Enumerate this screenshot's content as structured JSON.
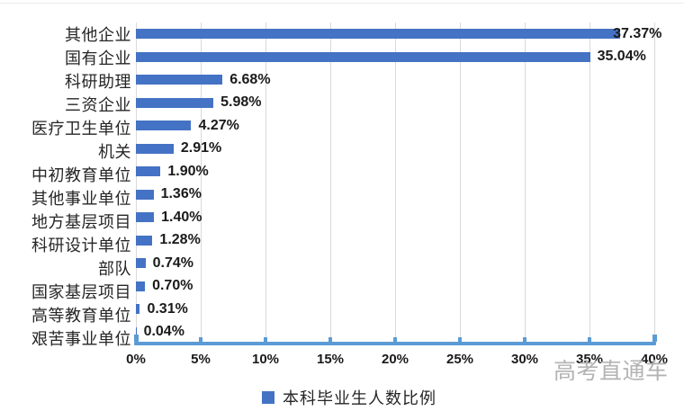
{
  "chart_data": {
    "type": "bar",
    "orientation": "horizontal",
    "title": "",
    "categories": [
      "其他企业",
      "国有企业",
      "科研助理",
      "三资企业",
      "医疗卫生单位",
      "机关",
      "中初教育单位",
      "其他事业单位",
      "地方基层项目",
      "科研设计单位",
      "部队",
      "国家基层项目",
      "高等教育单位",
      "艰苦事业单位"
    ],
    "values": [
      37.37,
      35.04,
      6.68,
      5.98,
      4.27,
      2.91,
      1.9,
      1.36,
      1.4,
      1.28,
      0.74,
      0.7,
      0.31,
      0.04
    ],
    "data_labels": [
      "37.37%",
      "35.04%",
      "6.68%",
      "5.98%",
      "4.27%",
      "2.91%",
      "1.90%",
      "1.36%",
      "1.40%",
      "1.28%",
      "0.74%",
      "0.70%",
      "0.31%",
      "0.04%"
    ],
    "x_axis": {
      "min": 0,
      "max": 40,
      "step": 5,
      "tick_labels": [
        "0%",
        "5%",
        "10%",
        "15%",
        "20%",
        "25%",
        "30%",
        "35%",
        "40%"
      ]
    },
    "grid": true,
    "legend": [
      "本科毕业生人数比例"
    ],
    "legend_position": "bottom",
    "colors": {
      "bar": "#4472c4",
      "axis_line": "#5b9bd5",
      "gridline": "#d9d9d9",
      "text": "#1a1a1a",
      "watermark": "#b3b3b3"
    }
  },
  "watermark": "高考直通车"
}
